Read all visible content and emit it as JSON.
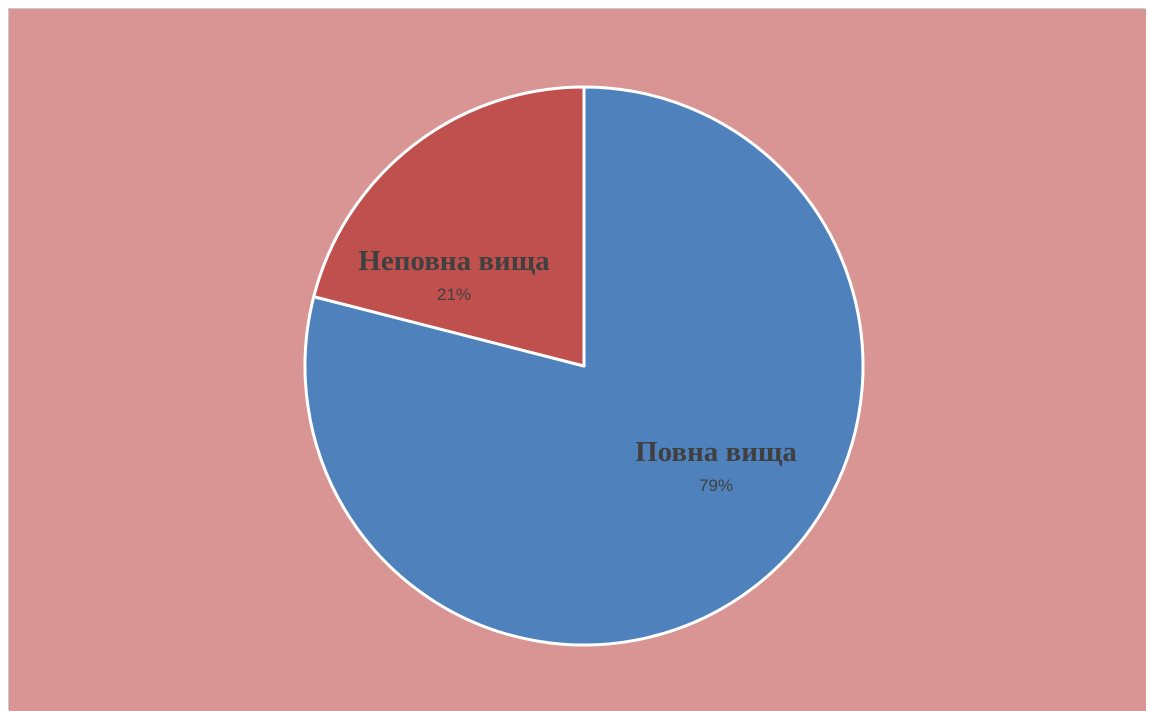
{
  "colors": {
    "background": "#d99594",
    "slice_border": "#ffffff",
    "label_text": "#404040"
  },
  "chart_data": {
    "type": "pie",
    "start_angle_deg": 0,
    "direction": "clockwise",
    "slices": [
      {
        "label": "Повна вища",
        "value": 79,
        "display": "79%",
        "color": "#4f81bd"
      },
      {
        "label": "Неповна вища",
        "value": 21,
        "display": "21%",
        "color": "#c0504d"
      }
    ]
  }
}
